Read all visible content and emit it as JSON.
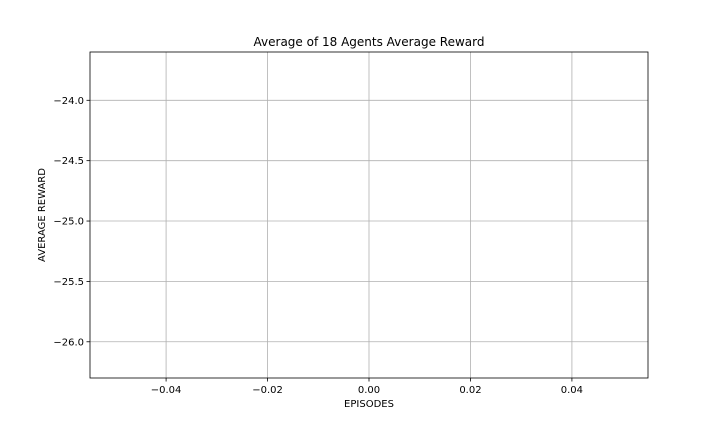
{
  "chart_data": {
    "type": "line",
    "title": "Average of 18 Agents Average Reward",
    "xlabel": "EPISODES",
    "ylabel": "AVERAGE REWARD",
    "xlim": [
      -0.055,
      0.055
    ],
    "ylim": [
      -26.3,
      -23.6
    ],
    "x_ticks": [
      -0.04,
      -0.02,
      0.0,
      0.02,
      0.04
    ],
    "x_tick_labels": [
      "−0.04",
      "−0.02",
      "0.00",
      "0.02",
      "0.04"
    ],
    "y_ticks": [
      -24.0,
      -24.5,
      -25.0,
      -25.5,
      -26.0
    ],
    "y_tick_labels": [
      "−24.0",
      "−24.5",
      "−25.0",
      "−25.5",
      "−26.0"
    ],
    "grid": true,
    "series": []
  }
}
